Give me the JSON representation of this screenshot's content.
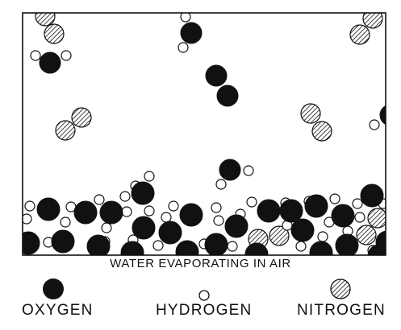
{
  "caption": "WATER EVAPORATING IN AIR",
  "legend": {
    "oxygen": "OXYGEN",
    "hydrogen": "HYDROGEN",
    "nitrogen": "NITROGEN"
  },
  "colors": {
    "oxygen": "#111111",
    "hydrogen": "#ffffff",
    "nitrogen_hatch": "#111111",
    "outline": "#111111"
  }
}
